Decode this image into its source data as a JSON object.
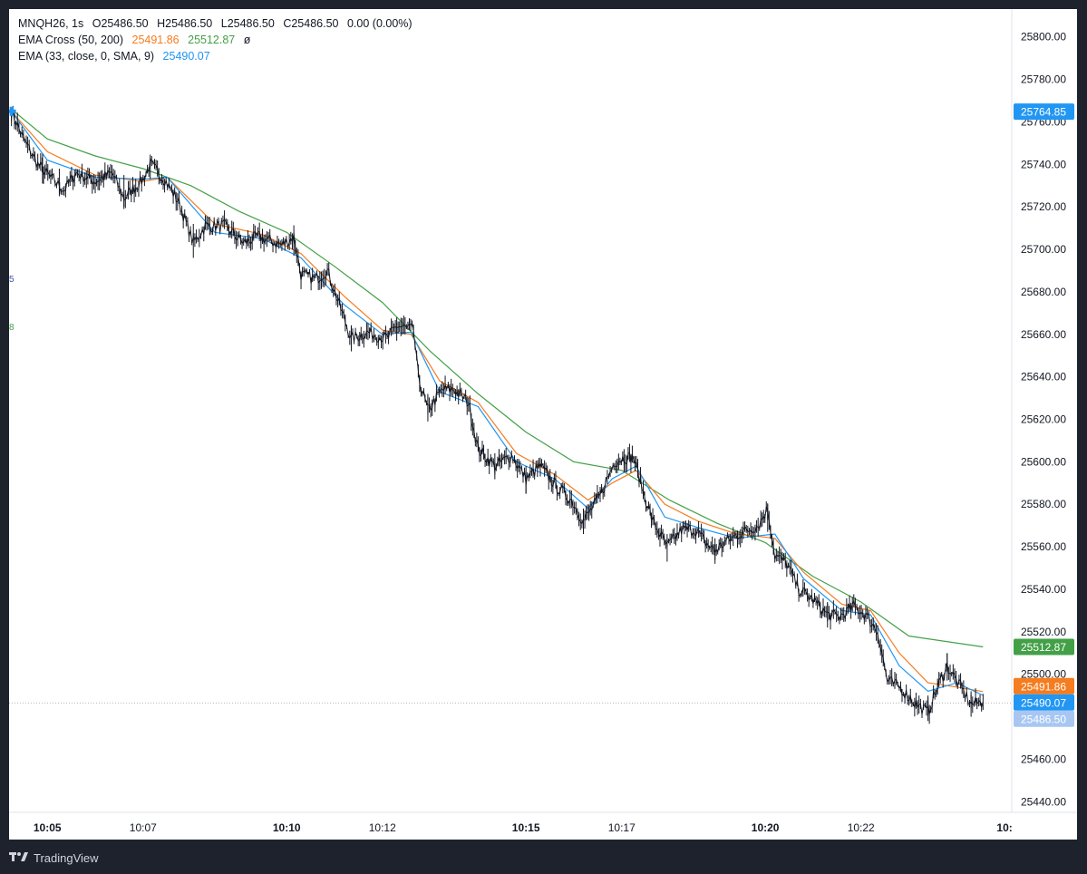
{
  "legend": {
    "symbol": "MNQH26, 1s",
    "open_label": "O",
    "open": "25486.50",
    "high_label": "H",
    "high": "25486.50",
    "low_label": "L",
    "low": "25486.50",
    "close_label": "C",
    "close": "25486.50",
    "change": "0.00 (0.00%)",
    "ema_cross_label": "EMA Cross (50, 200)",
    "ema_cross_fast": "25491.86",
    "ema_cross_slow": "25512.87",
    "ema_cross_flag": "ø",
    "ema_label": "EMA (33, close, 0, SMA, 9)",
    "ema_value": "25490.07"
  },
  "side_markers": [
    "5",
    "8"
  ],
  "price_tags": {
    "start": "25764.85",
    "slow": "25512.87",
    "fast": "25491.86",
    "ema": "25490.07",
    "last": "25486.50"
  },
  "footer": {
    "brand": "TradingView"
  },
  "colors": {
    "fast_ema": "#f57c1f",
    "slow_ema": "#43a047",
    "ema33": "#2196f3",
    "candle": "#131722",
    "tag_start": "#2196f3",
    "tag_slow": "#43a047",
    "tag_fast": "#f57c1f",
    "tag_ema": "#2196f3",
    "tag_last": "#a7c7f2"
  },
  "chart_data": {
    "type": "line",
    "title": "MNQH26, 1s",
    "y_ticks": [
      25440,
      25460,
      25480,
      25500,
      25520,
      25540,
      25560,
      25580,
      25600,
      25620,
      25640,
      25660,
      25680,
      25700,
      25720,
      25740,
      25760,
      25780,
      25800
    ],
    "ylim": [
      25435,
      25808
    ],
    "x_ticks": [
      {
        "label": "10:05",
        "minute": 5,
        "bold": true
      },
      {
        "label": "10:07",
        "minute": 7,
        "bold": false
      },
      {
        "label": "10:10",
        "minute": 10,
        "bold": true
      },
      {
        "label": "10:12",
        "minute": 12,
        "bold": false
      },
      {
        "label": "10:15",
        "minute": 15,
        "bold": true
      },
      {
        "label": "10:17",
        "minute": 17,
        "bold": false
      },
      {
        "label": "10:20",
        "minute": 20,
        "bold": true
      },
      {
        "label": "10:22",
        "minute": 22,
        "bold": false
      },
      {
        "label": "10:",
        "minute": 25,
        "bold": true
      }
    ],
    "x_unit": "minutes past 10:00",
    "xlim": [
      4.2,
      25.15
    ],
    "price_path": [
      [
        4.25,
        25765
      ],
      [
        4.5,
        25752
      ],
      [
        4.8,
        25740
      ],
      [
        5.1,
        25733
      ],
      [
        5.35,
        25728
      ],
      [
        5.6,
        25736
      ],
      [
        6.0,
        25732
      ],
      [
        6.35,
        25736
      ],
      [
        6.6,
        25724
      ],
      [
        7.0,
        25733
      ],
      [
        7.15,
        25740
      ],
      [
        7.45,
        25733
      ],
      [
        7.75,
        25722
      ],
      [
        8.05,
        25703
      ],
      [
        8.3,
        25711
      ],
      [
        8.7,
        25711
      ],
      [
        9.1,
        25703
      ],
      [
        9.4,
        25706
      ],
      [
        9.9,
        25702
      ],
      [
        10.15,
        25706
      ],
      [
        10.3,
        25688
      ],
      [
        10.6,
        25686
      ],
      [
        10.85,
        25690
      ],
      [
        11.1,
        25674
      ],
      [
        11.35,
        25658
      ],
      [
        11.7,
        25661
      ],
      [
        12.1,
        25658
      ],
      [
        12.3,
        25664
      ],
      [
        12.65,
        25662
      ],
      [
        12.75,
        25640
      ],
      [
        12.95,
        25624
      ],
      [
        13.25,
        25634
      ],
      [
        13.5,
        25634
      ],
      [
        13.8,
        25628
      ],
      [
        14.0,
        25606
      ],
      [
        14.35,
        25598
      ],
      [
        14.7,
        25603
      ],
      [
        15.0,
        25592
      ],
      [
        15.3,
        25598
      ],
      [
        15.65,
        25588
      ],
      [
        15.95,
        25582
      ],
      [
        16.2,
        25572
      ],
      [
        16.55,
        25584
      ],
      [
        16.85,
        25600
      ],
      [
        17.05,
        25602
      ],
      [
        17.25,
        25602
      ],
      [
        17.45,
        25586
      ],
      [
        17.65,
        25572
      ],
      [
        17.95,
        25560
      ],
      [
        18.25,
        25568
      ],
      [
        18.55,
        25568
      ],
      [
        18.75,
        25562
      ],
      [
        18.95,
        25558
      ],
      [
        19.15,
        25562
      ],
      [
        19.45,
        25566
      ],
      [
        19.85,
        25570
      ],
      [
        20.05,
        25578
      ],
      [
        20.2,
        25556
      ],
      [
        20.45,
        25552
      ],
      [
        20.7,
        25540
      ],
      [
        21.0,
        25535
      ],
      [
        21.3,
        25528
      ],
      [
        21.55,
        25527
      ],
      [
        21.85,
        25532
      ],
      [
        22.1,
        25528
      ],
      [
        22.35,
        25520
      ],
      [
        22.55,
        25497
      ],
      [
        22.8,
        25494
      ],
      [
        23.15,
        25486
      ],
      [
        23.4,
        25482
      ],
      [
        23.6,
        25494
      ],
      [
        23.8,
        25504
      ],
      [
        24.05,
        25495
      ],
      [
        24.3,
        25486
      ],
      [
        24.55,
        25487
      ]
    ],
    "candle_wicks": [
      [
        4.25,
        25758,
        25767
      ],
      [
        4.9,
        25731,
        25745
      ],
      [
        5.25,
        25725,
        25738
      ],
      [
        6.6,
        25719,
        25735
      ],
      [
        7.15,
        25733,
        25742
      ],
      [
        8.05,
        25696,
        25712
      ],
      [
        10.15,
        25697,
        25708
      ],
      [
        11.35,
        25652,
        25664
      ],
      [
        12.3,
        25657,
        25668
      ],
      [
        12.95,
        25619,
        25632
      ],
      [
        14.35,
        25594,
        25604
      ],
      [
        15.0,
        25585,
        25598
      ],
      [
        16.2,
        25566,
        25578
      ],
      [
        17.05,
        25595,
        25606
      ],
      [
        17.95,
        25553,
        25566
      ],
      [
        18.95,
        25552,
        25564
      ],
      [
        20.05,
        25567,
        25580
      ],
      [
        21.3,
        25522,
        25534
      ],
      [
        23.4,
        25478,
        25490
      ],
      [
        23.8,
        25497,
        25510
      ],
      [
        24.3,
        25480,
        25492
      ]
    ],
    "series": [
      {
        "name": "EMA Cross (50, 200)",
        "values": [
          [
            4.25,
            25766
          ],
          [
            5.0,
            25752
          ],
          [
            6.0,
            25744
          ],
          [
            7.0,
            25738
          ],
          [
            8.0,
            25730
          ],
          [
            9.0,
            25718
          ],
          [
            10.0,
            25708
          ],
          [
            11.0,
            25692
          ],
          [
            12.0,
            25675
          ],
          [
            13.0,
            25652
          ],
          [
            14.0,
            25632
          ],
          [
            15.0,
            25614
          ],
          [
            16.0,
            25600
          ],
          [
            17.0,
            25596
          ],
          [
            18.0,
            25582
          ],
          [
            19.0,
            25571
          ],
          [
            20.0,
            25562
          ],
          [
            21.0,
            25546
          ],
          [
            22.0,
            25534
          ],
          [
            23.0,
            25518
          ],
          [
            24.55,
            25512.87
          ]
        ]
      },
      {
        "name": "EMA Cross (50, 200)",
        "values": [
          [
            4.25,
            25765
          ],
          [
            5.0,
            25746
          ],
          [
            6.0,
            25735
          ],
          [
            7.0,
            25732
          ],
          [
            7.5,
            25734
          ],
          [
            8.5,
            25712
          ],
          [
            9.5,
            25707
          ],
          [
            10.3,
            25698
          ],
          [
            11.2,
            25678
          ],
          [
            12.0,
            25662
          ],
          [
            12.6,
            25660
          ],
          [
            13.2,
            25638
          ],
          [
            14.0,
            25628
          ],
          [
            14.8,
            25604
          ],
          [
            15.6,
            25594
          ],
          [
            16.3,
            25582
          ],
          [
            16.8,
            25590
          ],
          [
            17.3,
            25596
          ],
          [
            17.9,
            25580
          ],
          [
            18.6,
            25572
          ],
          [
            19.4,
            25566
          ],
          [
            20.2,
            25564
          ],
          [
            20.8,
            25548
          ],
          [
            21.6,
            25533
          ],
          [
            22.2,
            25530
          ],
          [
            22.8,
            25510
          ],
          [
            23.4,
            25496
          ],
          [
            24.0,
            25494
          ],
          [
            24.55,
            25491.86
          ]
        ]
      },
      {
        "name": "EMA (33, close, 0, SMA, 9)",
        "values": [
          [
            4.25,
            25765
          ],
          [
            5.0,
            25742
          ],
          [
            6.0,
            25734
          ],
          [
            7.0,
            25733
          ],
          [
            7.5,
            25734
          ],
          [
            8.5,
            25708
          ],
          [
            9.5,
            25705
          ],
          [
            10.3,
            25696
          ],
          [
            11.2,
            25674
          ],
          [
            12.0,
            25660
          ],
          [
            12.6,
            25661
          ],
          [
            13.2,
            25633
          ],
          [
            14.0,
            25626
          ],
          [
            14.8,
            25600
          ],
          [
            15.6,
            25592
          ],
          [
            16.3,
            25578
          ],
          [
            16.8,
            25592
          ],
          [
            17.3,
            25598
          ],
          [
            17.9,
            25574
          ],
          [
            18.6,
            25569
          ],
          [
            19.4,
            25564
          ],
          [
            20.2,
            25566
          ],
          [
            20.8,
            25545
          ],
          [
            21.6,
            25530
          ],
          [
            22.2,
            25528
          ],
          [
            22.8,
            25504
          ],
          [
            23.4,
            25492
          ],
          [
            24.0,
            25496
          ],
          [
            24.55,
            25490.07
          ]
        ]
      }
    ],
    "last_price": 25486.5,
    "grid": false,
    "legend_position": "top-left"
  }
}
